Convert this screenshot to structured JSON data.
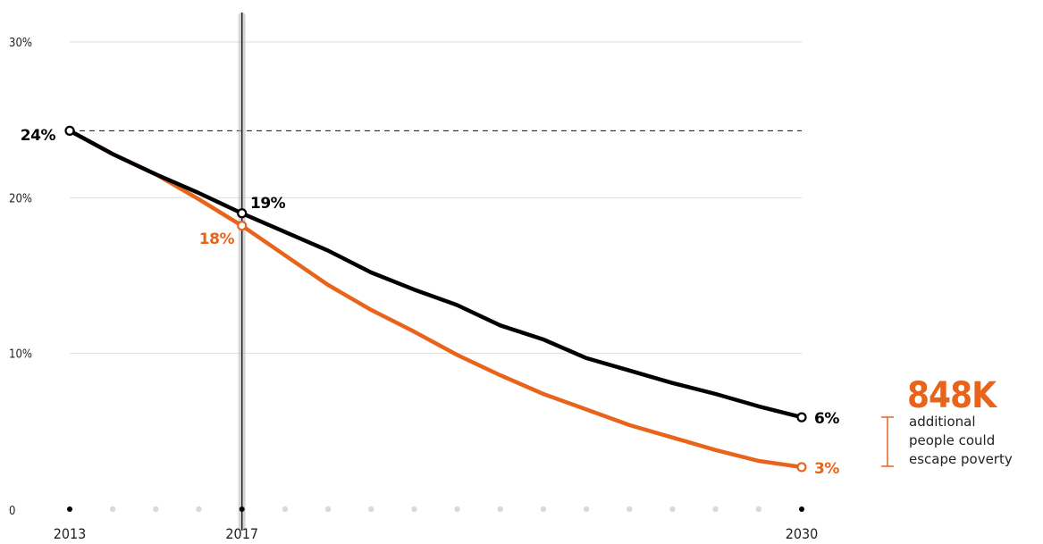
{
  "chart_data": {
    "type": "line",
    "x": [
      2013,
      2014,
      2015,
      2016,
      2017,
      2018,
      2019,
      2020,
      2021,
      2022,
      2023,
      2024,
      2025,
      2026,
      2027,
      2028,
      2029,
      2030
    ],
    "x_ticks": [
      "2013",
      "2017",
      "2030"
    ],
    "y_ticks": [
      "0",
      "10%",
      "20%",
      "30%"
    ],
    "ylim": [
      0,
      30
    ],
    "grid": true,
    "series": [
      {
        "color": "#000000",
        "values": [
          24.3,
          22.8,
          21.5,
          20.3,
          19.0,
          17.8,
          16.6,
          15.2,
          14.1,
          13.1,
          11.8,
          10.9,
          9.7,
          8.9,
          8.1,
          7.4,
          6.6,
          5.9
        ]
      },
      {
        "color": "#e8641a",
        "values": [
          24.3,
          22.8,
          21.5,
          19.9,
          18.2,
          16.3,
          14.4,
          12.8,
          11.4,
          9.9,
          8.6,
          7.4,
          6.4,
          5.4,
          4.6,
          3.8,
          3.1,
          2.7
        ]
      }
    ],
    "annotations": {
      "start_label": "24%",
      "black_2017_label": "19%",
      "orange_2017_label": "18%",
      "black_end_label": "6%",
      "orange_end_label": "3%"
    },
    "callout": {
      "value": "848K",
      "lines": [
        "additional",
        "people could",
        "escape poverty"
      ]
    },
    "colors": {
      "primary": "#000000",
      "accent": "#e8641a",
      "grid": "#dddddd",
      "marker": "#b5b5b5",
      "dot": "#d9d9d9"
    }
  }
}
